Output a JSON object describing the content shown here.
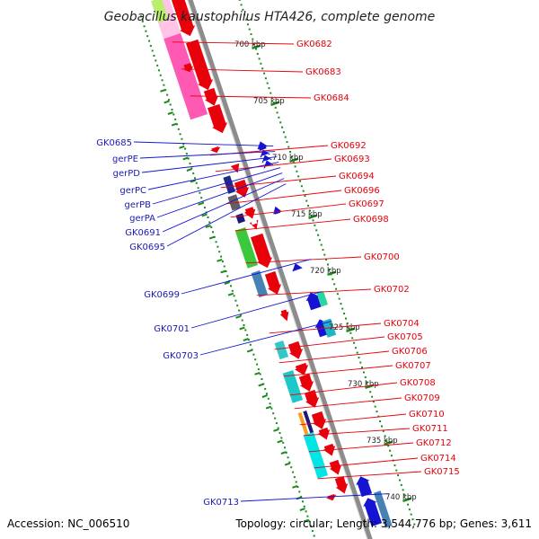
{
  "title": "Geobacillus kaustophilus HTA426, complete genome",
  "footer": {
    "accession": "Accession: NC_006510",
    "topology": "Topology: circular; Length: 3,544,776 bp; Genes: 3,611"
  },
  "colors": {
    "forward_strand": "#e8000b",
    "reverse_strand": "#1414d2",
    "backbone": "#8c8c8c",
    "tick": "#1a8a1a",
    "forward_label": "#e8000b",
    "reverse_label": "#1a1ab4"
  },
  "scale": {
    "ticks": [
      "700 kbp",
      "705 kbp",
      "710 kbp",
      "715 kbp",
      "720 kbp",
      "725 kbp",
      "730 kbp",
      "735 kbp",
      "740 kbp"
    ]
  },
  "labels_forward": [
    "GK0682",
    "GK0683",
    "GK0684",
    "GK0692",
    "GK0693",
    "GK0694",
    "GK0696",
    "GK0697",
    "GK0698",
    "GK0700",
    "GK0702",
    "GK0704",
    "GK0705",
    "GK0706",
    "GK0707",
    "GK0708",
    "GK0709",
    "GK0710",
    "GK0711",
    "GK0712",
    "GK0714",
    "GK0715"
  ],
  "labels_reverse": [
    "GK0685",
    "gerPE",
    "gerPD",
    "gerPC",
    "gerPB",
    "gerPA",
    "GK0691",
    "GK0695",
    "GK0699",
    "GK0701",
    "GK0703",
    "GK0713"
  ]
}
